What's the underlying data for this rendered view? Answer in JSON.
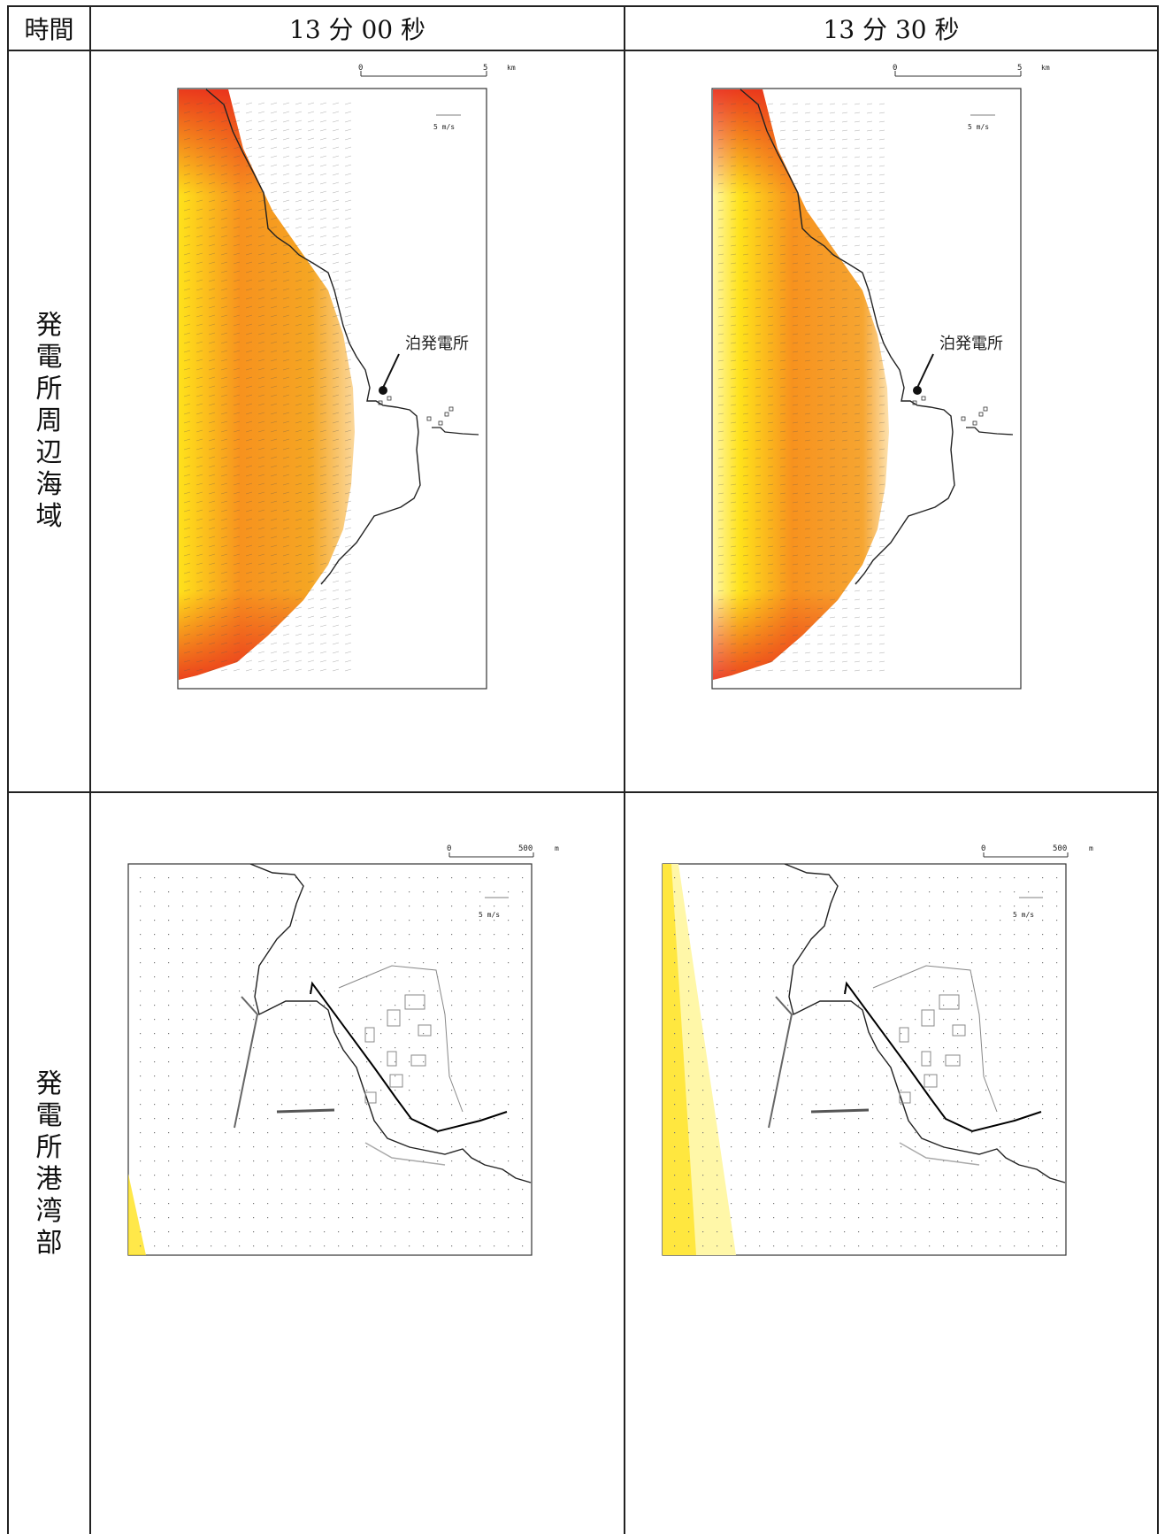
{
  "header": {
    "time_label": "時間",
    "col1": "13 分 00 秒",
    "col2": "13 分 30 秒"
  },
  "rows": [
    {
      "label": "発電所周辺海域"
    },
    {
      "label": "発電所港湾部"
    }
  ],
  "maps": {
    "regional": {
      "scale_start": "0",
      "scale_end": "5",
      "scale_unit": "km",
      "velocity_ref": "5 m/s",
      "location_label": "泊発電所"
    },
    "harbor": {
      "scale_start": "0",
      "scale_end": "500",
      "scale_unit": "m",
      "velocity_ref": "5 m/s"
    }
  },
  "colors": {
    "wave_high": "#e8281c",
    "wave_mid": "#f7921e",
    "wave_low": "#ffe21c",
    "wave_pale": "#fff7a8"
  }
}
